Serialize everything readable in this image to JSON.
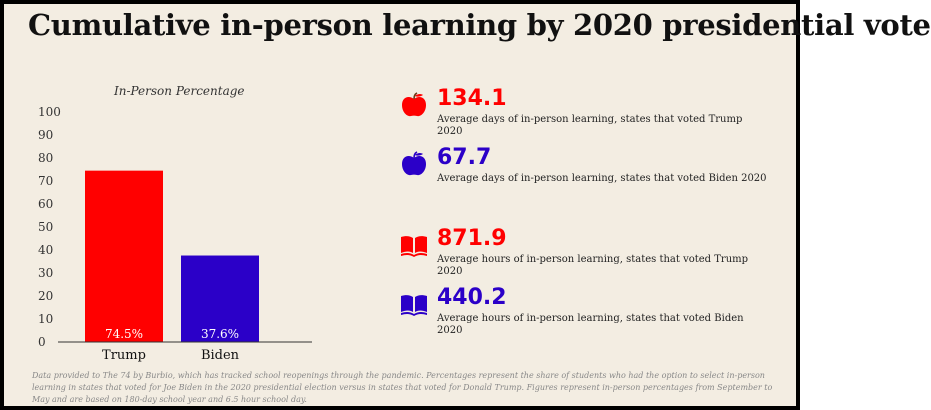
{
  "title": "Cumulative in-person learning by 2020 presidential vote",
  "colors": {
    "trump": "#ff0000",
    "biden": "#2b00c8",
    "background": "#f3ede2"
  },
  "chart_data": {
    "type": "bar",
    "title": "In-Person Percentage",
    "categories": [
      "Trump",
      "Biden"
    ],
    "values": [
      74.5,
      37.6
    ],
    "data_labels": [
      "74.5%",
      "37.6%"
    ],
    "bar_colors": [
      "#ff0000",
      "#2b00c8"
    ],
    "ylim": [
      0,
      100
    ],
    "yticks": [
      0,
      10,
      20,
      30,
      40,
      50,
      60,
      70,
      80,
      90,
      100
    ],
    "grid": false,
    "xlabel": "",
    "ylabel": ""
  },
  "stats": [
    {
      "icon": "apple-icon",
      "value": "134.1",
      "color": "#ff0000",
      "desc": "Average days of in-person learning, states that voted Trump 2020"
    },
    {
      "icon": "apple-icon",
      "value": "67.7",
      "color": "#2b00c8",
      "desc": "Average days of in-person learning, states that voted Biden 2020"
    },
    {
      "icon": "book-icon",
      "value": "871.9",
      "color": "#ff0000",
      "desc": "Average hours of in-person learning, states that voted Trump 2020"
    },
    {
      "icon": "book-icon",
      "value": "440.2",
      "color": "#2b00c8",
      "desc": "Average hours of in-person learning, states that voted Biden 2020"
    }
  ],
  "footnote": "Data provided to The 74 by Burbio, which has tracked school reopenings through the pandemic. Percentages represent the share of students who had the option to select in-person learning in states that voted for Joe Biden in the 2020 presidential election versus in states that voted for Donald Trump. Figures represent in-person percentages from September to May and are based on 180-day school year and 6.5 hour school day."
}
